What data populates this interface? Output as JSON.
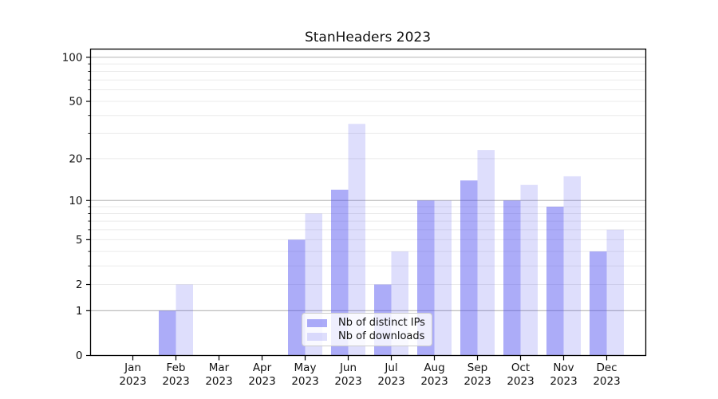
{
  "title": "StanHeaders 2023",
  "chart_data": {
    "type": "bar",
    "title": "StanHeaders 2023",
    "year": "2023",
    "months": [
      "Jan",
      "Feb",
      "Mar",
      "Apr",
      "May",
      "Jun",
      "Jul",
      "Aug",
      "Sep",
      "Oct",
      "Nov",
      "Dec"
    ],
    "categories": [
      "Jan 2023",
      "Feb 2023",
      "Mar 2023",
      "Apr 2023",
      "May 2023",
      "Jun 2023",
      "Jul 2023",
      "Aug 2023",
      "Sep 2023",
      "Oct 2023",
      "Nov 2023",
      "Dec 2023"
    ],
    "series": [
      {
        "name": "Nb of distinct IPs",
        "values": [
          0,
          1,
          0,
          0,
          5,
          12,
          2,
          10,
          14,
          10,
          9,
          4
        ]
      },
      {
        "name": "Nb of downloads",
        "values": [
          0,
          2,
          0,
          0,
          8,
          35,
          4,
          10,
          23,
          13,
          15,
          6
        ]
      }
    ],
    "yscale": "log1p",
    "ylim": [
      0,
      114
    ],
    "y_tick_values": [
      0,
      1,
      2,
      5,
      10,
      20,
      50,
      100
    ],
    "y_tick_labels": [
      "0",
      "1",
      "2",
      "5",
      "10",
      "20",
      "50",
      "100"
    ],
    "y_major_gridlines": [
      1,
      10,
      100
    ],
    "y_minor_gridlines": [
      2,
      3,
      4,
      5,
      6,
      7,
      8,
      9,
      20,
      30,
      40,
      50,
      60,
      70,
      80,
      90
    ],
    "grid": true,
    "legend_position": "lower center"
  },
  "legend": {
    "items": [
      {
        "label": "Nb of distinct IPs"
      },
      {
        "label": "Nb of downloads"
      }
    ]
  },
  "colors": {
    "bar_dark": "rgba(70,70,240,0.45)",
    "bar_light": "rgba(70,70,240,0.18)",
    "grid_major": "#bdbdbd",
    "grid_minor": "#ebebeb",
    "axis": "#000000",
    "text": "#111111",
    "legend_border": "#cccccc",
    "legend_bg": "rgba(255,255,255,0.8)"
  }
}
